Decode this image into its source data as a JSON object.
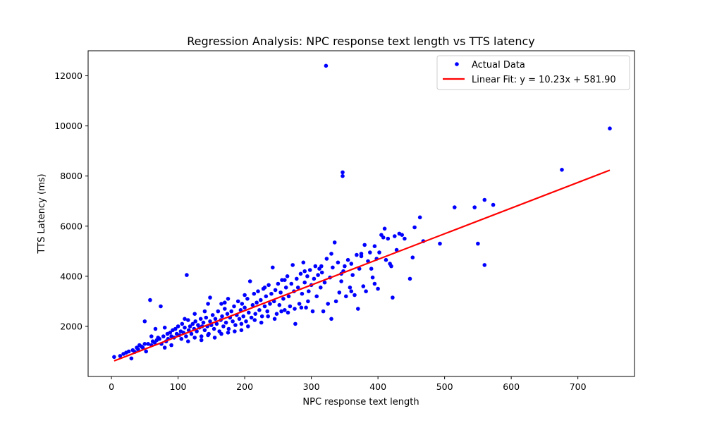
{
  "chart_data": {
    "type": "scatter",
    "title": "Regression Analysis: NPC response text length vs TTS latency",
    "xlabel": "NPC response text length",
    "ylabel": "TTS Latency (ms)",
    "xlim": [
      -35,
      785
    ],
    "ylim": [
      0,
      13000
    ],
    "xticks": [
      0,
      100,
      200,
      300,
      400,
      500,
      600,
      700
    ],
    "yticks": [
      2000,
      4000,
      6000,
      8000,
      10000,
      12000
    ],
    "grid": false,
    "legend_position": "top-right",
    "scatter_color": "#0000ff",
    "fit_color": "#ff0000",
    "series": [
      {
        "name": "Actual Data",
        "kind": "scatter",
        "points": [
          [
            4,
            780
          ],
          [
            13,
            820
          ],
          [
            18,
            900
          ],
          [
            22,
            950
          ],
          [
            26,
            1000
          ],
          [
            30,
            720
          ],
          [
            32,
            1050
          ],
          [
            35,
            980
          ],
          [
            38,
            1150
          ],
          [
            40,
            1080
          ],
          [
            42,
            1250
          ],
          [
            45,
            1200
          ],
          [
            47,
            1150
          ],
          [
            50,
            2200
          ],
          [
            50,
            1300
          ],
          [
            52,
            1000
          ],
          [
            55,
            1300
          ],
          [
            58,
            3050
          ],
          [
            60,
            1250
          ],
          [
            62,
            1400
          ],
          [
            65,
            1350
          ],
          [
            66,
            1900
          ],
          [
            68,
            1450
          ],
          [
            70,
            1550
          ],
          [
            72,
            1500
          ],
          [
            74,
            2800
          ],
          [
            75,
            1300
          ],
          [
            78,
            1600
          ],
          [
            80,
            1950
          ],
          [
            82,
            1400
          ],
          [
            84,
            1700
          ],
          [
            85,
            1500
          ],
          [
            88,
            1750
          ],
          [
            90,
            1600
          ],
          [
            92,
            1850
          ],
          [
            94,
            1550
          ],
          [
            96,
            1900
          ],
          [
            98,
            1700
          ],
          [
            100,
            2000
          ],
          [
            102,
            1650
          ],
          [
            104,
            1800
          ],
          [
            106,
            2100
          ],
          [
            108,
            1750
          ],
          [
            110,
            1950
          ],
          [
            112,
            1600
          ],
          [
            113,
            4050
          ],
          [
            115,
            2250
          ],
          [
            116,
            1850
          ],
          [
            118,
            2000
          ],
          [
            120,
            1700
          ],
          [
            122,
            2100
          ],
          [
            124,
            1900
          ],
          [
            125,
            2500
          ],
          [
            126,
            2200
          ],
          [
            128,
            1800
          ],
          [
            130,
            2050
          ],
          [
            132,
            1950
          ],
          [
            134,
            2300
          ],
          [
            135,
            1600
          ],
          [
            136,
            2000
          ],
          [
            138,
            2150
          ],
          [
            140,
            1850
          ],
          [
            142,
            2350
          ],
          [
            144,
            2000
          ],
          [
            145,
            2900
          ],
          [
            146,
            1700
          ],
          [
            148,
            2200
          ],
          [
            148,
            3150
          ],
          [
            150,
            2050
          ],
          [
            152,
            2450
          ],
          [
            154,
            1900
          ],
          [
            156,
            2300
          ],
          [
            158,
            2100
          ],
          [
            160,
            2600
          ],
          [
            162,
            1800
          ],
          [
            164,
            2250
          ],
          [
            165,
            2900
          ],
          [
            166,
            2400
          ],
          [
            168,
            2000
          ],
          [
            170,
            2700
          ],
          [
            172,
            2150
          ],
          [
            174,
            2500
          ],
          [
            175,
            3100
          ],
          [
            176,
            1900
          ],
          [
            178,
            2350
          ],
          [
            180,
            2600
          ],
          [
            182,
            2200
          ],
          [
            184,
            2800
          ],
          [
            186,
            2050
          ],
          [
            188,
            2450
          ],
          [
            190,
            3000
          ],
          [
            192,
            2300
          ],
          [
            194,
            2650
          ],
          [
            195,
            1850
          ],
          [
            196,
            2900
          ],
          [
            198,
            2400
          ],
          [
            200,
            2750
          ],
          [
            202,
            2200
          ],
          [
            204,
            3100
          ],
          [
            206,
            2550
          ],
          [
            208,
            3800
          ],
          [
            210,
            2350
          ],
          [
            212,
            2850
          ],
          [
            214,
            3300
          ],
          [
            216,
            2500
          ],
          [
            218,
            2950
          ],
          [
            220,
            3400
          ],
          [
            222,
            2650
          ],
          [
            224,
            3050
          ],
          [
            226,
            2400
          ],
          [
            228,
            3500
          ],
          [
            230,
            2800
          ],
          [
            232,
            3200
          ],
          [
            234,
            2600
          ],
          [
            236,
            3650
          ],
          [
            238,
            2900
          ],
          [
            240,
            3300
          ],
          [
            242,
            4350
          ],
          [
            244,
            3000
          ],
          [
            246,
            3450
          ],
          [
            248,
            2500
          ],
          [
            250,
            3700
          ],
          [
            252,
            2850
          ],
          [
            254,
            3350
          ],
          [
            256,
            3850
          ],
          [
            258,
            3100
          ],
          [
            260,
            2650
          ],
          [
            262,
            3550
          ],
          [
            264,
            4000
          ],
          [
            266,
            3200
          ],
          [
            268,
            2800
          ],
          [
            270,
            3700
          ],
          [
            272,
            4450
          ],
          [
            274,
            3400
          ],
          [
            276,
            2100
          ],
          [
            278,
            3900
          ],
          [
            280,
            3550
          ],
          [
            282,
            2900
          ],
          [
            284,
            4100
          ],
          [
            286,
            3300
          ],
          [
            288,
            4550
          ],
          [
            290,
            3750
          ],
          [
            292,
            2750
          ],
          [
            294,
            4000
          ],
          [
            296,
            3400
          ],
          [
            298,
            4250
          ],
          [
            300,
            3650
          ],
          [
            302,
            2600
          ],
          [
            304,
            3900
          ],
          [
            306,
            4400
          ],
          [
            308,
            3200
          ],
          [
            310,
            4050
          ],
          [
            312,
            4300
          ],
          [
            314,
            3550
          ],
          [
            316,
            4150
          ],
          [
            318,
            2600
          ],
          [
            320,
            3750
          ],
          [
            322,
            12400
          ],
          [
            323,
            4700
          ],
          [
            325,
            2900
          ],
          [
            328,
            3950
          ],
          [
            330,
            4900
          ],
          [
            332,
            4350
          ],
          [
            335,
            5350
          ],
          [
            337,
            3000
          ],
          [
            340,
            4550
          ],
          [
            342,
            3350
          ],
          [
            345,
            3800
          ],
          [
            347,
            8150
          ],
          [
            347,
            8000
          ],
          [
            348,
            4200
          ],
          [
            350,
            4400
          ],
          [
            352,
            3200
          ],
          [
            355,
            4650
          ],
          [
            358,
            3550
          ],
          [
            360,
            4500
          ],
          [
            362,
            4050
          ],
          [
            365,
            3250
          ],
          [
            368,
            4850
          ],
          [
            370,
            2700
          ],
          [
            372,
            4300
          ],
          [
            375,
            4900
          ],
          [
            378,
            3600
          ],
          [
            380,
            5250
          ],
          [
            382,
            3400
          ],
          [
            385,
            4600
          ],
          [
            388,
            4950
          ],
          [
            390,
            4300
          ],
          [
            392,
            3950
          ],
          [
            395,
            5200
          ],
          [
            398,
            4700
          ],
          [
            400,
            3500
          ],
          [
            402,
            4950
          ],
          [
            405,
            5650
          ],
          [
            408,
            5550
          ],
          [
            410,
            5900
          ],
          [
            412,
            4650
          ],
          [
            415,
            5500
          ],
          [
            418,
            4500
          ],
          [
            420,
            4400
          ],
          [
            422,
            3150
          ],
          [
            425,
            5600
          ],
          [
            428,
            5050
          ],
          [
            432,
            5700
          ],
          [
            436,
            5650
          ],
          [
            440,
            5500
          ],
          [
            448,
            3900
          ],
          [
            452,
            4750
          ],
          [
            455,
            5950
          ],
          [
            463,
            6350
          ],
          [
            468,
            5400
          ],
          [
            493,
            5300
          ],
          [
            515,
            6750
          ],
          [
            545,
            6750
          ],
          [
            550,
            5300
          ],
          [
            560,
            7050
          ],
          [
            560,
            4450
          ],
          [
            573,
            6850
          ],
          [
            676,
            8250
          ],
          [
            748,
            9900
          ],
          [
            90,
            1250
          ],
          [
            105,
            1500
          ],
          [
            115,
            1400
          ],
          [
            125,
            1550
          ],
          [
            135,
            1450
          ],
          [
            145,
            1650
          ],
          [
            155,
            1550
          ],
          [
            165,
            1700
          ],
          [
            175,
            1750
          ],
          [
            185,
            1800
          ],
          [
            195,
            2100
          ],
          [
            205,
            2000
          ],
          [
            215,
            2250
          ],
          [
            225,
            2150
          ],
          [
            235,
            2400
          ],
          [
            245,
            2300
          ],
          [
            255,
            2600
          ],
          [
            265,
            2550
          ],
          [
            275,
            2700
          ],
          [
            285,
            2750
          ],
          [
            295,
            3000
          ],
          [
            60,
            1600
          ],
          [
            80,
            1150
          ],
          [
            110,
            2300
          ],
          [
            140,
            2600
          ],
          [
            170,
            2950
          ],
          [
            200,
            3250
          ],
          [
            230,
            3550
          ],
          [
            260,
            3850
          ],
          [
            290,
            4200
          ],
          [
            315,
            4400
          ],
          [
            330,
            2300
          ],
          [
            345,
            4100
          ],
          [
            360,
            3400
          ],
          [
            375,
            4800
          ],
          [
            395,
            3700
          ]
        ]
      },
      {
        "name": "Linear Fit: y = 10.23x + 581.90",
        "kind": "line",
        "slope": 10.23,
        "intercept": 581.9,
        "x_range": [
          4,
          748
        ]
      }
    ]
  }
}
